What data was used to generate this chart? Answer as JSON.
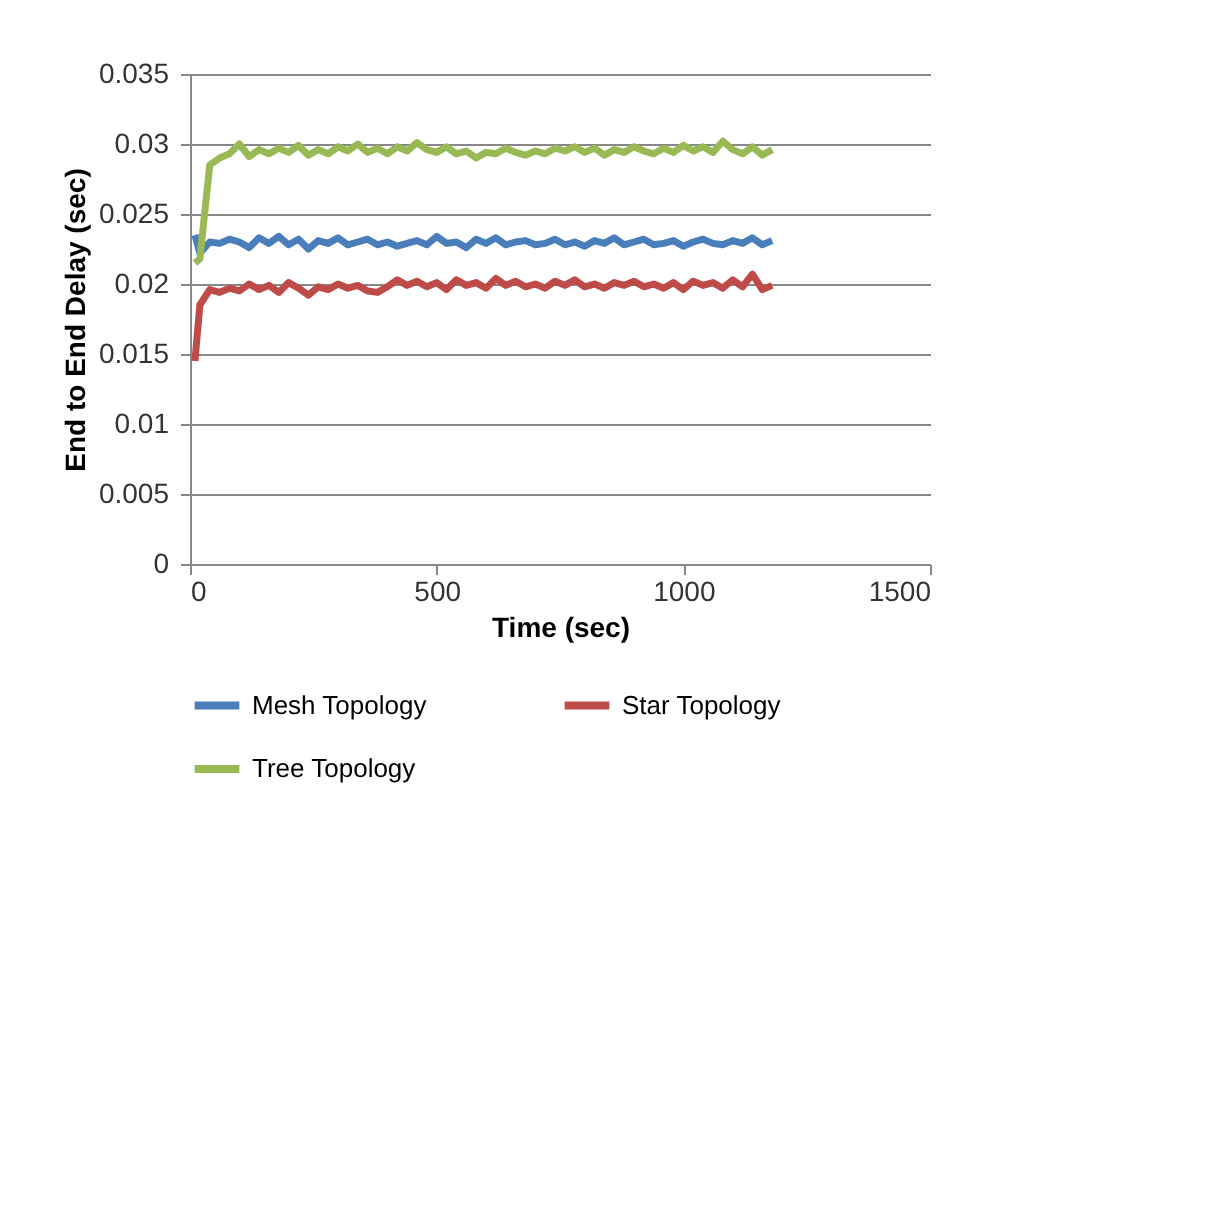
{
  "chart_data": {
    "type": "line",
    "xlabel": "Time (sec)",
    "ylabel": "End to End Delay (sec)",
    "x": [
      10,
      20,
      40,
      60,
      80,
      100,
      120,
      140,
      160,
      180,
      200,
      220,
      240,
      260,
      280,
      300,
      320,
      340,
      360,
      380,
      400,
      420,
      440,
      460,
      480,
      500,
      520,
      540,
      560,
      580,
      600,
      620,
      640,
      660,
      680,
      700,
      720,
      740,
      760,
      780,
      800,
      820,
      840,
      860,
      880,
      900,
      920,
      940,
      960,
      980,
      1000,
      1020,
      1040,
      1060,
      1080,
      1100,
      1120,
      1140,
      1160,
      1180
    ],
    "series": [
      {
        "name": "Mesh Topology",
        "color": "#4a7ebb",
        "values": [
          0.0235,
          0.0222,
          0.023,
          0.0229,
          0.0232,
          0.023,
          0.0226,
          0.0233,
          0.0229,
          0.0234,
          0.0228,
          0.0232,
          0.0225,
          0.0231,
          0.0229,
          0.0233,
          0.0228,
          0.023,
          0.0232,
          0.0228,
          0.023,
          0.0227,
          0.0229,
          0.0231,
          0.0228,
          0.0234,
          0.0229,
          0.023,
          0.0226,
          0.0232,
          0.0229,
          0.0233,
          0.0228,
          0.023,
          0.0231,
          0.0228,
          0.0229,
          0.0232,
          0.0228,
          0.023,
          0.0227,
          0.0231,
          0.0229,
          0.0233,
          0.0228,
          0.023,
          0.0232,
          0.0228,
          0.0229,
          0.0231,
          0.0227,
          0.023,
          0.0232,
          0.0229,
          0.0228,
          0.0231,
          0.0229,
          0.0233,
          0.0228,
          0.0231
        ]
      },
      {
        "name": "Star Topology",
        "color": "#be4b48",
        "values": [
          0.0145,
          0.0185,
          0.0196,
          0.0194,
          0.0197,
          0.0195,
          0.02,
          0.0196,
          0.0199,
          0.0194,
          0.0201,
          0.0197,
          0.0192,
          0.0198,
          0.0196,
          0.02,
          0.0197,
          0.0199,
          0.0195,
          0.0194,
          0.0198,
          0.0203,
          0.0199,
          0.0202,
          0.0198,
          0.0201,
          0.0196,
          0.0203,
          0.0199,
          0.0201,
          0.0197,
          0.0204,
          0.0199,
          0.0202,
          0.0198,
          0.02,
          0.0197,
          0.0202,
          0.0199,
          0.0203,
          0.0198,
          0.02,
          0.0197,
          0.0201,
          0.0199,
          0.0202,
          0.0198,
          0.02,
          0.0197,
          0.0201,
          0.0196,
          0.0202,
          0.0199,
          0.0201,
          0.0197,
          0.0203,
          0.0198,
          0.0207,
          0.0196,
          0.0199
        ]
      },
      {
        "name": "Tree Topology",
        "color": "#98b954",
        "values": [
          0.0215,
          0.0218,
          0.0285,
          0.029,
          0.0293,
          0.03,
          0.0291,
          0.0296,
          0.0293,
          0.0297,
          0.0294,
          0.0299,
          0.0292,
          0.0296,
          0.0293,
          0.0298,
          0.0295,
          0.03,
          0.0294,
          0.0297,
          0.0293,
          0.0298,
          0.0295,
          0.0301,
          0.0296,
          0.0294,
          0.0298,
          0.0293,
          0.0295,
          0.029,
          0.0294,
          0.0293,
          0.0297,
          0.0294,
          0.0292,
          0.0295,
          0.0293,
          0.0297,
          0.0295,
          0.0298,
          0.0294,
          0.0297,
          0.0292,
          0.0296,
          0.0294,
          0.0298,
          0.0295,
          0.0293,
          0.0297,
          0.0294,
          0.0299,
          0.0295,
          0.0298,
          0.0294,
          0.0302,
          0.0296,
          0.0293,
          0.0298,
          0.0292,
          0.0296
        ]
      }
    ],
    "xlim": [
      0,
      1500
    ],
    "xticks": [
      0,
      500,
      1000,
      1500
    ],
    "ylim": [
      0,
      0.035
    ],
    "yticks": [
      0,
      0.005,
      0.01,
      0.015,
      0.02,
      0.025,
      0.03,
      0.035
    ],
    "grid": "y",
    "legend": "bottom",
    "marker": "none",
    "line_style": "solid"
  }
}
